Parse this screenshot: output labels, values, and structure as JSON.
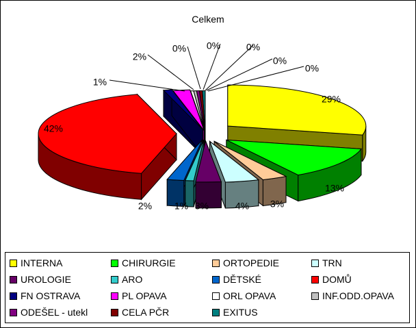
{
  "chart_data": {
    "type": "pie",
    "title": "Celkem",
    "slices": [
      {
        "name": "INTERNA",
        "value": 29,
        "label": "29%",
        "color": "#ffff00"
      },
      {
        "name": "CHIRURGIE",
        "value": 13,
        "label": "13%",
        "color": "#00ff00"
      },
      {
        "name": "ORTOPEDIE",
        "value": 3,
        "label": "3%",
        "color": "#ffcc99"
      },
      {
        "name": "TRN",
        "value": 4,
        "label": "4%",
        "color": "#ccffff"
      },
      {
        "name": "UROLOGIE",
        "value": 3,
        "label": "3%",
        "color": "#660066"
      },
      {
        "name": "ARO",
        "value": 1,
        "label": "1%",
        "color": "#33cccc"
      },
      {
        "name": "DĚTSKÉ",
        "value": 2,
        "label": "2%",
        "color": "#0066cc"
      },
      {
        "name": "DOMŮ",
        "value": 42,
        "label": "42%",
        "color": "#ff0000"
      },
      {
        "name": "FN OSTRAVA",
        "value": 1,
        "label": "1%",
        "color": "#000080"
      },
      {
        "name": "PL OPAVA",
        "value": 2,
        "label": "2%",
        "color": "#ff00ff"
      },
      {
        "name": "ORL OPAVA",
        "value": 0,
        "label": "0%",
        "color": "#ffffff"
      },
      {
        "name": "INF.ODD.OPAVA",
        "value": 0,
        "label": "0%",
        "color": "#c0c0c0"
      },
      {
        "name": "ODEŠEL - utekl",
        "value": 0,
        "label": "0%",
        "color": "#800080"
      },
      {
        "name": "CELA PČR",
        "value": 0,
        "label": "0%",
        "color": "#800000"
      },
      {
        "name": "EXITUS",
        "value": 0,
        "label": "0%",
        "color": "#008080"
      }
    ],
    "legend_position": "bottom",
    "exploded": true,
    "three_d": true
  }
}
